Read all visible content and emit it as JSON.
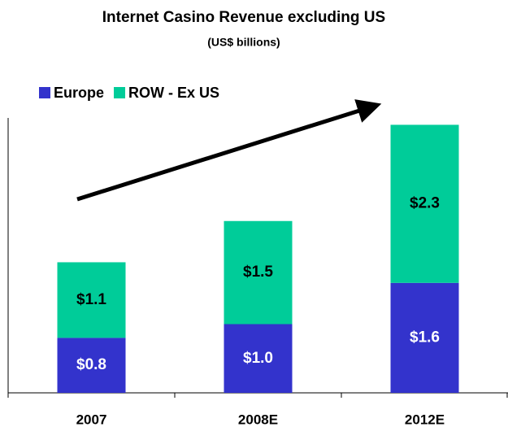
{
  "chart_data": {
    "type": "stacked_bar",
    "title": "Internet Casino Revenue excluding US",
    "subtitle": "(US$ billions)",
    "categories": [
      "2007",
      "2008E",
      "2012E"
    ],
    "series": [
      {
        "name": "Europe",
        "color": "#3333cc",
        "values": [
          0.8,
          1.0,
          1.6
        ],
        "value_labels": [
          "$0.8",
          "$1.0",
          "$1.6"
        ],
        "label_color": "#ffffff"
      },
      {
        "name": "ROW - Ex US",
        "color": "#00cc99",
        "values": [
          1.1,
          1.5,
          2.3
        ],
        "value_labels": [
          "$1.1",
          "$1.5",
          "$2.3"
        ],
        "label_color": "#000000"
      }
    ],
    "ylim": [
      0,
      4
    ],
    "legend": "top-left"
  }
}
